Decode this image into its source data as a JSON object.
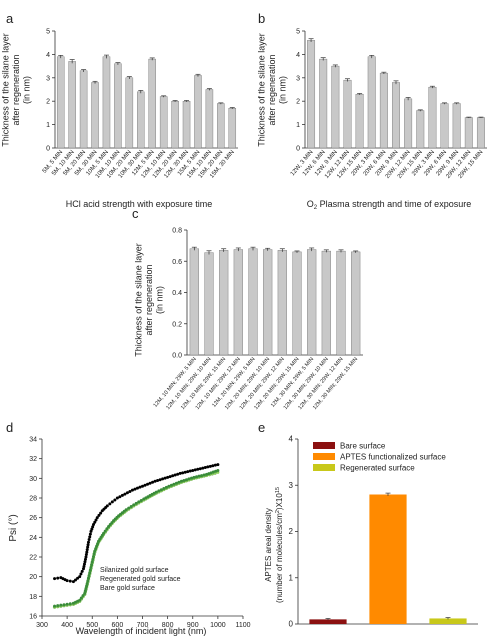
{
  "chart_data": [
    {
      "panel": "a",
      "type": "bar",
      "ylabel": [
        "Thickness of the silane layer",
        "after regeneration",
        "(in nm)"
      ],
      "xlabel": "HCl acid strength with exposure time",
      "ylim": [
        0,
        5
      ],
      "yticks": [
        0,
        1,
        2,
        3,
        4,
        5
      ],
      "categories": [
        "5M, 5 MIN",
        "5M, 10 MIN",
        "5M, 20 MIN",
        "5M, 30 MIN",
        "10M, 5 MIN",
        "10M, 10 MIN",
        "10M, 20 MIN",
        "10M, 30 MIN",
        "12M, 5 MIN",
        "12M, 10 MIN",
        "12M, 20 MIN",
        "12M, 30 MIN",
        "15M, 5 MIN",
        "15M, 10 MIN",
        "15M, 20 MIN",
        "15M, 30 MIN"
      ],
      "values": [
        3.9,
        3.7,
        3.3,
        2.8,
        3.9,
        3.6,
        3.0,
        2.4,
        3.8,
        2.2,
        2.0,
        2.0,
        3.1,
        2.5,
        1.9,
        1.7
      ],
      "errors": [
        0.06,
        0.08,
        0.05,
        0.05,
        0.07,
        0.05,
        0.05,
        0.06,
        0.05,
        0.03,
        0.03,
        0.03,
        0.05,
        0.04,
        0.03,
        0.03
      ]
    },
    {
      "panel": "b",
      "type": "bar",
      "ylabel": [
        "Thickness of the silane layer",
        "after regeneration",
        "(in nm)"
      ],
      "xlabel": "O2 Plasma strength and time of exposure",
      "ylim": [
        0,
        5
      ],
      "yticks": [
        0,
        1,
        2,
        3,
        4,
        5
      ],
      "categories": [
        "12W, 3 MIN",
        "12W, 6 MIN",
        "12W, 9 MIN",
        "12W, 12 MIN",
        "12W, 15 MIN",
        "20W, 3 MIN",
        "20W, 6 MIN",
        "20W, 9 MIN",
        "20W, 12 MIN",
        "20W, 15 MIN",
        "29W, 3 MIN",
        "29W, 6 MIN",
        "29W, 9 MIN",
        "29W, 12 MIN",
        "29W, 15 MIN"
      ],
      "values": [
        4.6,
        3.8,
        3.5,
        2.9,
        2.3,
        3.9,
        3.2,
        2.8,
        2.1,
        1.6,
        2.6,
        1.9,
        1.9,
        1.3,
        1.3
      ],
      "errors": [
        0.07,
        0.06,
        0.05,
        0.06,
        0.03,
        0.06,
        0.04,
        0.07,
        0.06,
        0.03,
        0.04,
        0.03,
        0.03,
        0.02,
        0.02
      ]
    },
    {
      "panel": "c",
      "type": "bar",
      "ylabel": [
        "Thickness of the silane layer",
        "after regeneration",
        "(in nm)"
      ],
      "xlabel": "",
      "ylim": [
        0,
        0.8
      ],
      "yticks": [
        0,
        0.2,
        0.4,
        0.6,
        0.8
      ],
      "ytick_labels": [
        "0.0",
        "0.2",
        "0.4",
        "0.6",
        "0.8"
      ],
      "categories": [
        "12M, 10 MIN; 29W, 5 MIN",
        "12M, 10 MIN; 29W, 10 MIN",
        "12M, 10 MIN; 29W, 15 MIN",
        "12M, 10 MIN; 29W, 12 MIN",
        "12M, 20 MIN; 29W, 5 MIN",
        "12M, 20 MIN; 29W, 10 MIN",
        "12M, 20 MIN; 29W, 12 MIN",
        "12M, 20 MIN; 29W, 15 MIN",
        "12M, 30 MIN; 29W, 5 MIN",
        "12M, 30 MIN; 29W, 10 MIN",
        "12M, 30 MIN; 29W, 12 MIN",
        "12M, 30 MIN; 29W, 15 MIN"
      ],
      "values": [
        0.68,
        0.655,
        0.67,
        0.675,
        0.68,
        0.675,
        0.67,
        0.66,
        0.675,
        0.665,
        0.665,
        0.66
      ],
      "errors": [
        0.01,
        0.012,
        0.01,
        0.01,
        0.01,
        0.008,
        0.01,
        0.006,
        0.01,
        0.008,
        0.008,
        0.006
      ]
    },
    {
      "panel": "d",
      "type": "scatter",
      "ylabel": "Psi (°)",
      "xlabel": "Wavelength of incident light (nm)",
      "xlim": [
        300,
        1100
      ],
      "xticks": [
        300,
        400,
        500,
        600,
        700,
        800,
        900,
        1000,
        1100
      ],
      "ylim": [
        16,
        34
      ],
      "yticks": [
        16,
        18,
        20,
        22,
        24,
        26,
        28,
        30,
        32,
        34
      ],
      "legend": [
        "Silanized gold surface",
        "Regenerated gold surface",
        "Bare gold surface"
      ],
      "series": [
        {
          "name": "Silanized gold surface",
          "color": "#000000",
          "x": [
            350,
            375,
            400,
            425,
            450,
            465,
            475,
            485,
            495,
            505,
            520,
            540,
            560,
            580,
            600,
            630,
            660,
            700,
            750,
            800,
            850,
            900,
            950,
            1000
          ],
          "y": [
            19.8,
            19.9,
            19.6,
            19.5,
            20.0,
            20.8,
            22.0,
            23.5,
            24.6,
            25.3,
            26.0,
            26.7,
            27.2,
            27.6,
            28.0,
            28.4,
            28.8,
            29.2,
            29.7,
            30.1,
            30.5,
            30.8,
            31.1,
            31.4
          ]
        },
        {
          "name": "Regenerated gold surface",
          "color": "#3a8c3a",
          "x": [
            350,
            375,
            400,
            425,
            450,
            470,
            480,
            490,
            500,
            510,
            525,
            545,
            565,
            585,
            605,
            635,
            665,
            705,
            755,
            805,
            855,
            905,
            955,
            1000
          ],
          "y": [
            17.0,
            17.1,
            17.2,
            17.3,
            17.6,
            18.3,
            19.3,
            20.4,
            21.5,
            22.6,
            23.6,
            24.4,
            25.1,
            25.7,
            26.2,
            26.8,
            27.3,
            27.9,
            28.6,
            29.2,
            29.7,
            30.1,
            30.4,
            30.8
          ]
        },
        {
          "name": "Bare gold surface",
          "color": "#8fd05a",
          "x": [
            350,
            375,
            400,
            425,
            450,
            470,
            480,
            490,
            500,
            510,
            525,
            545,
            565,
            585,
            605,
            635,
            665,
            705,
            755,
            805,
            855,
            905,
            955,
            1000
          ],
          "y": [
            16.9,
            17.0,
            17.1,
            17.2,
            17.5,
            18.2,
            19.2,
            20.3,
            21.4,
            22.5,
            23.5,
            24.3,
            25.0,
            25.6,
            26.1,
            26.7,
            27.2,
            27.8,
            28.5,
            29.1,
            29.6,
            30.0,
            30.3,
            30.6
          ]
        }
      ]
    },
    {
      "panel": "e",
      "type": "bar",
      "ylabel": [
        "APTES areal density",
        "(number of molecules/cm",
        "2",
        ")X10",
        "15"
      ],
      "ylim": [
        0,
        4
      ],
      "yticks": [
        0,
        1,
        2,
        3,
        4
      ],
      "legend": [
        "Bare surface",
        "APTES functionalized surface",
        "Regenerated surface"
      ],
      "categories": [
        "Bare surface",
        "APTES functionalized surface",
        "Regenerated surface"
      ],
      "values": [
        0.1,
        2.8,
        0.12
      ],
      "errors": [
        0.02,
        0.03,
        0.02
      ],
      "colors": [
        "#8b1010",
        "#ff8a00",
        "#c8c81a"
      ]
    }
  ],
  "panel_labels": [
    "a",
    "b",
    "c",
    "d",
    "e"
  ],
  "colors": {
    "bar": "#c8c8c8",
    "bar_stroke": "#6e6e6e",
    "axis": "#333333"
  }
}
